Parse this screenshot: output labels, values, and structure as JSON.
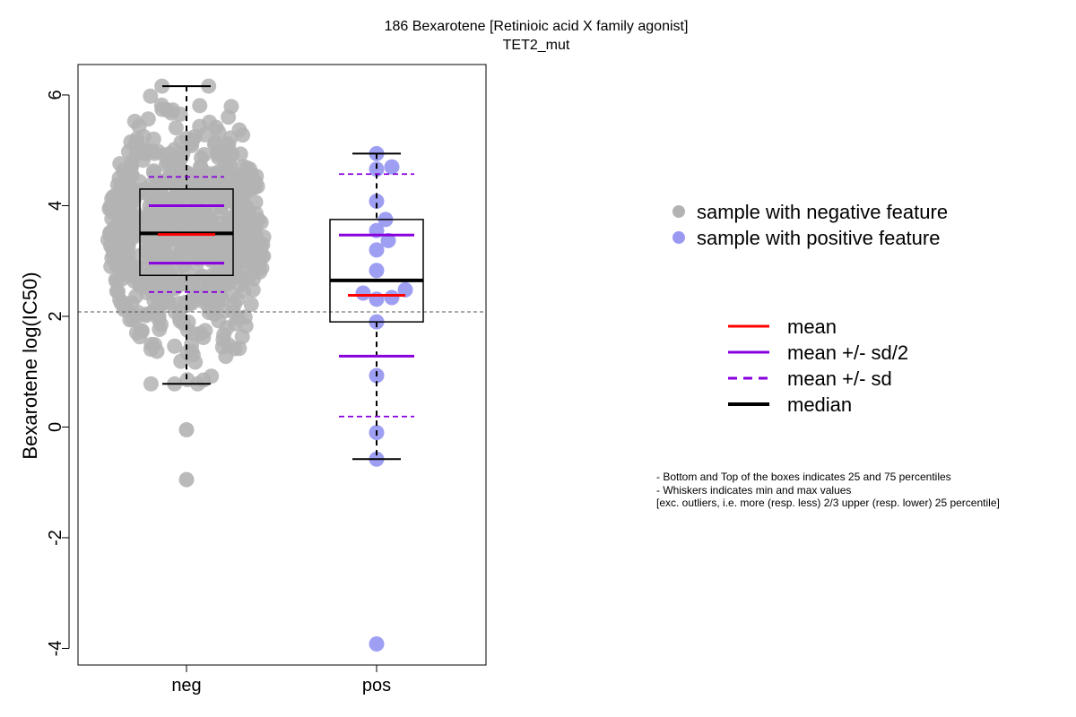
{
  "chart_data": {
    "type": "box-strip",
    "title": "186 Bexarotene [Retinioic acid X family agonist]",
    "subtitle": "TET2_mut",
    "ylabel": "Bexarotene log(IC50)",
    "ylim": [
      -4.3,
      6.55
    ],
    "yticks": [
      -4,
      -2,
      0,
      2,
      4,
      6
    ],
    "categories": [
      "neg",
      "pos"
    ],
    "reference_line": 2.08,
    "groups": [
      {
        "name": "neg",
        "color": "#b3b3b3",
        "box": {
          "q1": 2.74,
          "median": 3.5,
          "q3": 4.3,
          "whisker_low": 0.78,
          "whisker_high": 6.16
        },
        "mean": 3.48,
        "mean_plus_half_sd": 4.0,
        "mean_minus_half_sd": 2.96,
        "mean_plus_sd": 4.52,
        "mean_minus_sd": 2.44,
        "outliers": [
          -0.05,
          -0.95
        ],
        "sample_count": 700
      },
      {
        "name": "pos",
        "color": "#9999f2",
        "box": {
          "q1": 1.9,
          "median": 2.65,
          "q3": 3.75,
          "whisker_low": -0.58,
          "whisker_high": 4.94
        },
        "mean": 2.38,
        "mean_plus_half_sd": 3.47,
        "mean_minus_half_sd": 1.28,
        "mean_plus_sd": 4.57,
        "mean_minus_sd": 0.19,
        "points": [
          {
            "y": 4.94,
            "dx": 0
          },
          {
            "y": 4.7,
            "dx": 17
          },
          {
            "y": 4.66,
            "dx": 0
          },
          {
            "y": 4.08,
            "dx": 0
          },
          {
            "y": 3.75,
            "dx": 10
          },
          {
            "y": 3.55,
            "dx": 0
          },
          {
            "y": 3.37,
            "dx": 13
          },
          {
            "y": 3.2,
            "dx": 0
          },
          {
            "y": 2.83,
            "dx": 0
          },
          {
            "y": 2.48,
            "dx": 32
          },
          {
            "y": 2.42,
            "dx": -15
          },
          {
            "y": 2.34,
            "dx": 17
          },
          {
            "y": 2.31,
            "dx": 0
          },
          {
            "y": 1.9,
            "dx": 0
          },
          {
            "y": 0.93,
            "dx": 0
          },
          {
            "y": -0.1,
            "dx": 0
          },
          {
            "y": -0.58,
            "dx": 0
          },
          {
            "y": -3.92,
            "dx": 0
          }
        ]
      }
    ],
    "legend_points": [
      {
        "label": "sample with negative feature",
        "color": "#b3b3b3"
      },
      {
        "label": "sample with positive feature",
        "color": "#9999f2"
      }
    ],
    "legend_lines": [
      {
        "label": "mean",
        "color": "#ff0000",
        "style": "solid"
      },
      {
        "label": "mean +/- sd/2",
        "color": "#8800dd",
        "style": "solid"
      },
      {
        "label": "mean +/- sd",
        "color": "#8800dd",
        "style": "dashed"
      },
      {
        "label": "median",
        "color": "#000000",
        "style": "thick"
      }
    ],
    "notes": [
      "- Bottom and Top of the boxes indicates 25 and 75 percentiles",
      "- Whiskers indicates min and max values",
      "[exc. outliers, i.e. more (resp. less) 2/3 upper (resp. lower) 25 percentile]"
    ]
  }
}
